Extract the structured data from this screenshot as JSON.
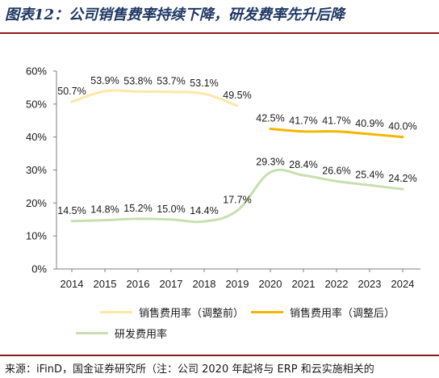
{
  "title": "图表12：公司销售费率持续下降，研发费率先升后降",
  "source": "来源：iFinD，国金证券研究所（注：公司 2020 年起将与 ERP 和云实施相关的",
  "chart_data": {
    "type": "line",
    "categories": [
      "2014",
      "2015",
      "2016",
      "2017",
      "2018",
      "2019",
      "2020",
      "2021",
      "2022",
      "2023",
      "2024"
    ],
    "ylim": [
      0,
      60
    ],
    "yticks": [
      "0%",
      "10%",
      "20%",
      "30%",
      "40%",
      "50%",
      "60%"
    ],
    "grid": false,
    "legend_position": "bottom",
    "series": [
      {
        "name": "销售费用率（调整前）",
        "color": "#fde8a5",
        "values": [
          50.7,
          53.9,
          53.8,
          53.7,
          53.1,
          49.5,
          null,
          null,
          null,
          null,
          null
        ],
        "labels": [
          "50.7%",
          "53.9%",
          "53.8%",
          "53.7%",
          "53.1%",
          "49.5%",
          "",
          "",
          "",
          "",
          ""
        ]
      },
      {
        "name": "销售费用率（调整后）",
        "color": "#f4b700",
        "values": [
          null,
          null,
          null,
          null,
          null,
          null,
          42.5,
          41.7,
          41.7,
          40.9,
          40.0
        ],
        "labels": [
          "",
          "",
          "",
          "",
          "",
          "",
          "42.5%",
          "41.7%",
          "41.7%",
          "40.9%",
          "40.0%"
        ]
      },
      {
        "name": "研发费用率",
        "color": "#c9dfae",
        "values": [
          14.5,
          14.8,
          15.2,
          15.0,
          14.4,
          17.7,
          29.3,
          28.4,
          26.6,
          25.4,
          24.2
        ],
        "labels": [
          "14.5%",
          "14.8%",
          "15.2%",
          "15.0%",
          "14.4%",
          "17.7%",
          "29.3%",
          "28.4%",
          "26.6%",
          "25.4%",
          "24.2%"
        ]
      }
    ]
  }
}
